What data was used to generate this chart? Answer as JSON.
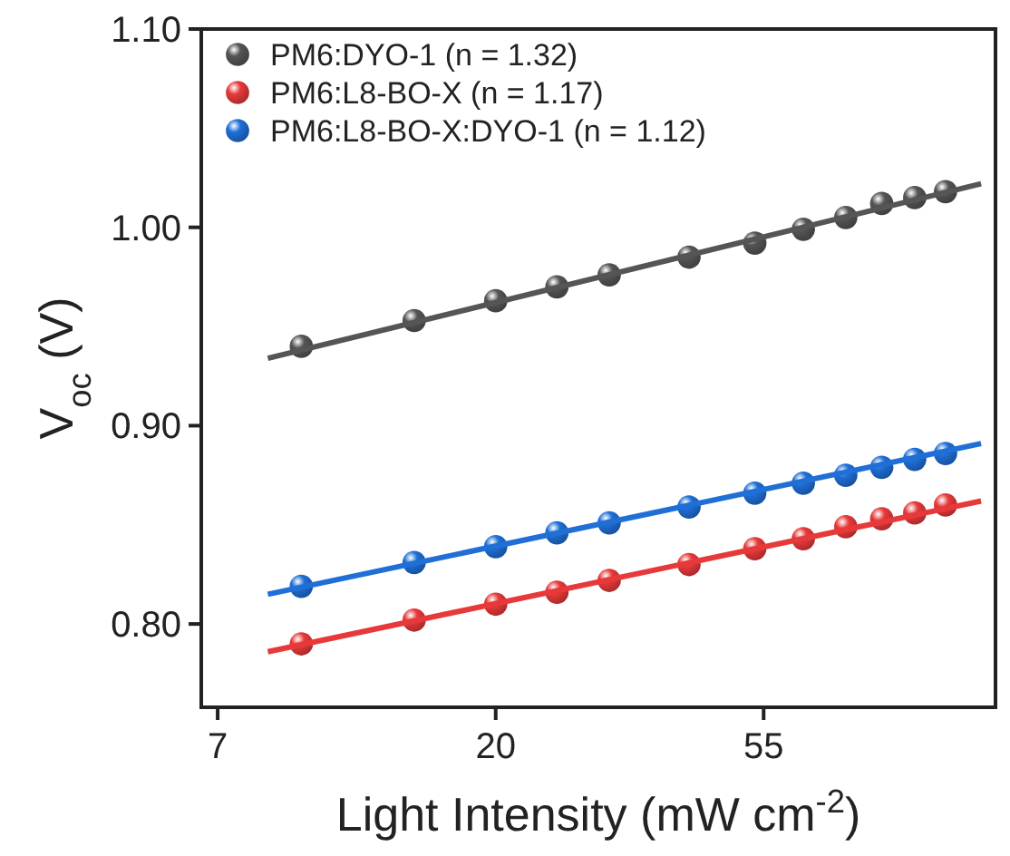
{
  "chart_data": {
    "type": "scatter",
    "xlabel": "Light Intensity (mW cm$^{-2}$)",
    "ylabel": "V$_{oc}$ (V)",
    "log": "x",
    "xlim": [
      6.58,
      132
    ],
    "xticks": [
      7,
      20,
      55
    ],
    "ylim": [
      0.758,
      1.1
    ],
    "yticks": [
      {
        "value": 0.8,
        "label": "0.80"
      },
      {
        "value": 0.9,
        "label": "0.90"
      },
      {
        "value": 1.0,
        "label": "1.00"
      },
      {
        "value": 1.1,
        "label": "1.10"
      }
    ],
    "legend": "top left",
    "marker": "circle",
    "grid": false,
    "series": [
      {
        "name": "PM6:DYO-1 (n = 1.32)",
        "color": "#555555",
        "x": [
          9.6,
          14.7,
          20,
          25.2,
          30.7,
          41.5,
          53.2,
          63.9,
          75,
          85.9,
          97.3,
          109.3
        ],
        "values": [
          0.94,
          0.953,
          0.963,
          0.97,
          0.976,
          0.985,
          0.992,
          0.999,
          1.005,
          1.012,
          1.015,
          1.018
        ]
      },
      {
        "name": "PM6:L8-BO-X (n = 1.17)",
        "color": "#e8393a",
        "x": [
          9.6,
          14.7,
          20,
          25.2,
          30.7,
          41.5,
          53.2,
          63.9,
          75,
          85.9,
          97.3,
          109.3
        ],
        "values": [
          0.79,
          0.802,
          0.81,
          0.816,
          0.822,
          0.83,
          0.838,
          0.843,
          0.849,
          0.853,
          0.856,
          0.86
        ]
      },
      {
        "name": "PM6:L8-BO-X:DYO-1 (n = 1.12)",
        "color": "#1f6fd6",
        "x": [
          9.6,
          14.7,
          20,
          25.2,
          30.7,
          41.5,
          53.2,
          63.9,
          75,
          85.9,
          97.3,
          109.3
        ],
        "values": [
          0.819,
          0.831,
          0.839,
          0.846,
          0.851,
          0.859,
          0.866,
          0.871,
          0.875,
          0.879,
          0.883,
          0.886
        ]
      },
      {
        "type": "line",
        "color": "#555555",
        "marker": "none",
        "x": [
          8.46,
          125
        ],
        "values": [
          0.934,
          1.022
        ]
      },
      {
        "type": "line",
        "color": "#e8393a",
        "marker": "none",
        "x": [
          8.46,
          125
        ],
        "values": [
          0.786,
          0.862
        ]
      },
      {
        "type": "line",
        "color": "#1f6fd6",
        "marker": "none",
        "x": [
          8.46,
          125
        ],
        "values": [
          0.815,
          0.891
        ]
      }
    ]
  }
}
